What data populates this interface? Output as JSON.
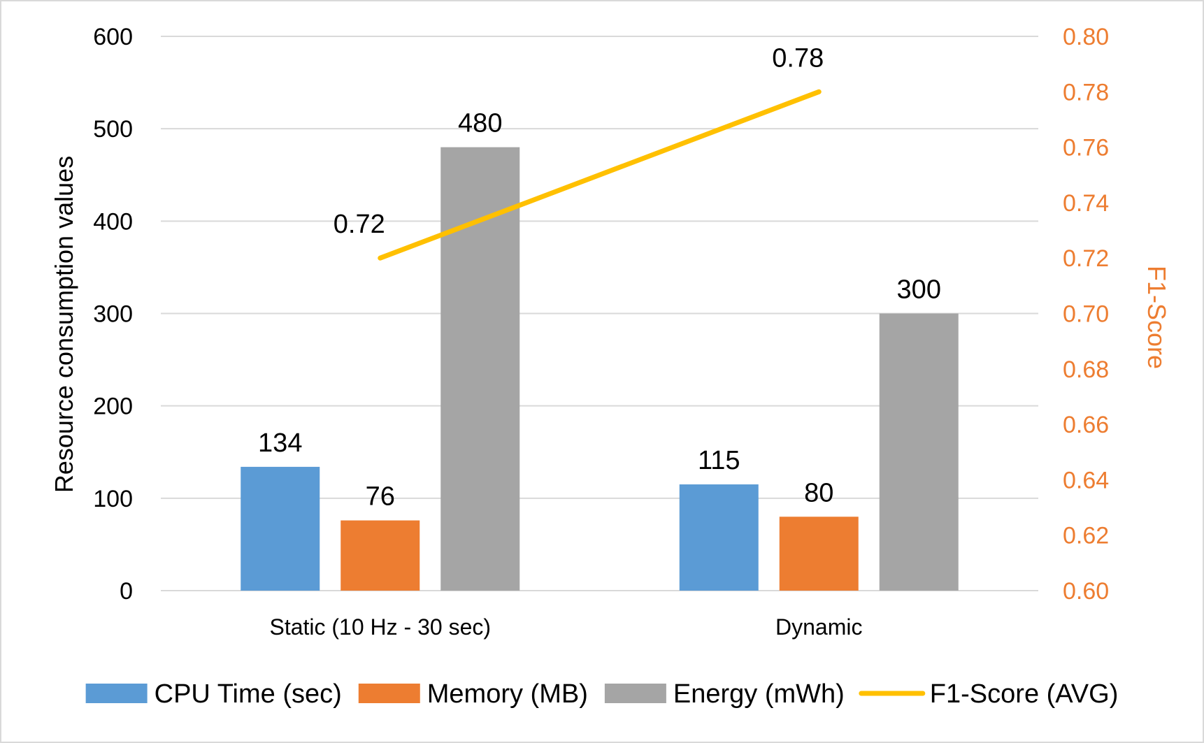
{
  "chart_data": {
    "type": "bar",
    "categories": [
      "Static (10 Hz - 30 sec)",
      "Dynamic"
    ],
    "series": [
      {
        "name": "CPU Time (sec)",
        "type": "bar",
        "axis": "left",
        "values": [
          134,
          115
        ],
        "color": "#5b9bd5"
      },
      {
        "name": "Memory (MB)",
        "type": "bar",
        "axis": "left",
        "values": [
          76,
          80
        ],
        "color": "#ed7d31"
      },
      {
        "name": "Energy (mWh)",
        "type": "bar",
        "axis": "left",
        "values": [
          480,
          300
        ],
        "color": "#a5a5a5"
      },
      {
        "name": "F1-Score (AVG)",
        "type": "line",
        "axis": "right",
        "values": [
          0.72,
          0.78
        ],
        "color": "#ffc000"
      }
    ],
    "data_labels": {
      "bars": [
        [
          "134",
          "115"
        ],
        [
          "76",
          "80"
        ],
        [
          "480",
          "300"
        ]
      ],
      "line": [
        "0.72",
        "0.78"
      ]
    },
    "y_left": {
      "label": "Resource consumption values",
      "ylim": [
        0,
        600
      ],
      "ticks": [
        "0",
        "100",
        "200",
        "300",
        "400",
        "500",
        "600"
      ]
    },
    "y_right": {
      "label": "F1-Score",
      "ylim": [
        0.6,
        0.8
      ],
      "ticks": [
        "0.60",
        "0.62",
        "0.64",
        "0.66",
        "0.68",
        "0.70",
        "0.72",
        "0.74",
        "0.76",
        "0.78",
        "0.80"
      ],
      "color": "#ed7d31"
    },
    "xlabel": "",
    "title": "",
    "grid": true,
    "legend_position": "bottom"
  }
}
